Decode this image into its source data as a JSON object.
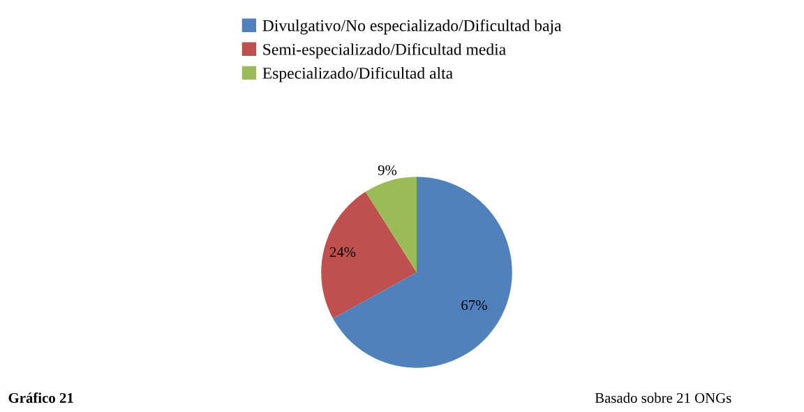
{
  "chart_data": {
    "type": "pie",
    "categories": [
      "Divulgativo/No especializado/Dificultad baja",
      "Semi-especializado/Dificultad media",
      "Especializado/Dificultad alta"
    ],
    "values": [
      67,
      24,
      9
    ],
    "value_labels": [
      "67%",
      "24%",
      "9%"
    ],
    "colors": [
      "#4f81bd",
      "#c0504d",
      "#9bbb59"
    ],
    "legend": "top",
    "annotations": [
      "Gráfico 21",
      "Basado sobre 21 ONGs"
    ]
  }
}
